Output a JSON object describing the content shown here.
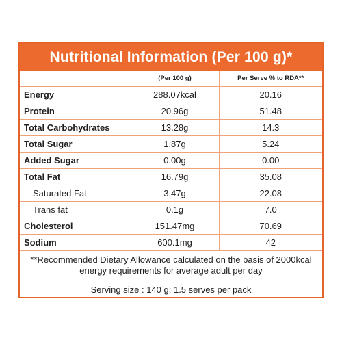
{
  "title": "Nutritional Information (Per 100 g)*",
  "columns": [
    "",
    "(Per 100 g)",
    "Per Serve % to RDA**"
  ],
  "rows": [
    {
      "name": "Energy",
      "per100": "288.07kcal",
      "rda": "20.16",
      "sub": false
    },
    {
      "name": "Protein",
      "per100": "20.96g",
      "rda": "51.48",
      "sub": false
    },
    {
      "name": "Total Carbohydrates",
      "per100": "13.28g",
      "rda": "14.3",
      "sub": false
    },
    {
      "name": "Total Sugar",
      "per100": "1.87g",
      "rda": "5.24",
      "sub": false
    },
    {
      "name": "Added Sugar",
      "per100": "0.00g",
      "rda": "0.00",
      "sub": false
    },
    {
      "name": "Total Fat",
      "per100": "16.79g",
      "rda": "35.08",
      "sub": false
    },
    {
      "name": "Saturated Fat",
      "per100": "3.47g",
      "rda": "22.08",
      "sub": true
    },
    {
      "name": "Trans fat",
      "per100": "0.1g",
      "rda": "7.0",
      "sub": true
    },
    {
      "name": "Cholesterol",
      "per100": "151.47mg",
      "rda": "70.69",
      "sub": false
    },
    {
      "name": "Sodium",
      "per100": "600.1mg",
      "rda": "42",
      "sub": false
    }
  ],
  "footnote": "**Recommended Dietary Allowance calculated on the basis of 2000kcal energy requirements for average adult per day",
  "serving": "Serving size : 140 g; 1.5 serves per pack",
  "colors": {
    "header_bg": "#ec6a2e",
    "border": "#e5642a",
    "grid": "#f0a27b"
  }
}
